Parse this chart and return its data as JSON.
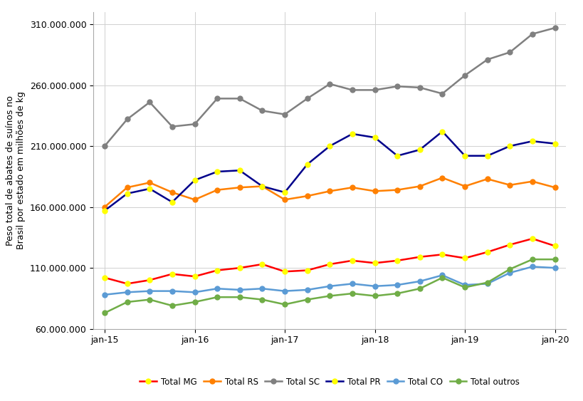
{
  "ylabel": "Peso total de abates de suínos no\nBrasil por estado em milhões de kg",
  "ylim": [
    60000000,
    320000000
  ],
  "yticks": [
    60000000,
    110000000,
    160000000,
    210000000,
    260000000,
    310000000
  ],
  "xtick_labels": [
    "jan-15",
    "jan-16",
    "jan-17",
    "jan-18",
    "jan-19",
    "jan-20"
  ],
  "xtick_positions": [
    0,
    4,
    8,
    12,
    16,
    20
  ],
  "n_points": 21,
  "background_color": "#FFFFFF",
  "grid_color": "#D0D0D0",
  "series": {
    "Total MG": {
      "color": "#FF0000",
      "marker_color": "#FFFF00",
      "values": [
        102000000,
        97000000,
        100000000,
        105000000,
        103000000,
        108000000,
        110000000,
        113000000,
        107000000,
        108000000,
        113000000,
        116000000,
        114000000,
        116000000,
        119000000,
        121000000,
        118000000,
        123000000,
        129000000,
        134000000,
        128000000
      ]
    },
    "Total RS": {
      "color": "#FF8000",
      "marker_color": "#FF8000",
      "values": [
        160000000,
        176000000,
        180000000,
        172000000,
        166000000,
        174000000,
        176000000,
        177000000,
        166000000,
        169000000,
        173000000,
        176000000,
        173000000,
        174000000,
        177000000,
        184000000,
        177000000,
        183000000,
        178000000,
        181000000,
        176000000
      ]
    },
    "Total SC": {
      "color": "#808080",
      "marker_color": "#808080",
      "values": [
        210000000,
        232000000,
        246000000,
        226000000,
        228000000,
        249000000,
        249000000,
        239000000,
        236000000,
        249000000,
        261000000,
        256000000,
        256000000,
        259000000,
        258000000,
        253000000,
        268000000,
        281000000,
        287000000,
        302000000,
        307000000
      ]
    },
    "Total PR": {
      "color": "#00008B",
      "marker_color": "#FFFF00",
      "values": [
        157000000,
        171000000,
        175000000,
        164000000,
        182000000,
        189000000,
        190000000,
        177000000,
        172000000,
        195000000,
        210000000,
        220000000,
        217000000,
        202000000,
        207000000,
        222000000,
        202000000,
        202000000,
        210000000,
        214000000,
        212000000
      ]
    },
    "Total CO": {
      "color": "#5B9BD5",
      "marker_color": "#5B9BD5",
      "values": [
        88000000,
        90000000,
        91000000,
        91000000,
        90000000,
        93000000,
        92000000,
        93000000,
        91000000,
        92000000,
        95000000,
        97000000,
        95000000,
        96000000,
        99000000,
        104000000,
        96000000,
        97000000,
        106000000,
        111000000,
        110000000
      ]
    },
    "Total outros": {
      "color": "#70AD47",
      "marker_color": "#70AD47",
      "values": [
        73000000,
        82000000,
        84000000,
        79000000,
        82000000,
        86000000,
        86000000,
        84000000,
        80000000,
        84000000,
        87000000,
        89000000,
        87000000,
        89000000,
        93000000,
        102000000,
        94000000,
        98000000,
        109000000,
        117000000,
        117000000
      ]
    }
  }
}
